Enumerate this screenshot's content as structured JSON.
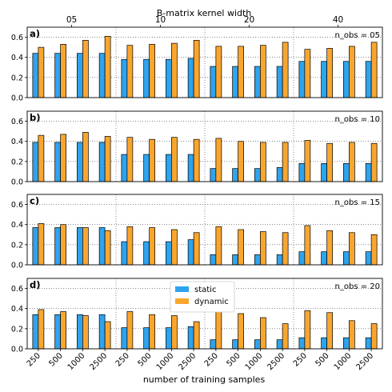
{
  "chart_data": {
    "type": "bar",
    "top_axis_label": "B-matrix kernel width",
    "top_ticks": [
      "05",
      "10",
      "20",
      "40"
    ],
    "xlabel": "number of training samples",
    "x_tick_labels": [
      "250",
      "500",
      "1000",
      "2500",
      "250",
      "500",
      "1000",
      "2500",
      "250",
      "500",
      "1000",
      "2500",
      "250",
      "500",
      "1000",
      "2500"
    ],
    "ylim": [
      0,
      0.7
    ],
    "yticks": [
      "0.0",
      "0.2",
      "0.4",
      "0.6"
    ],
    "grid": "horizontal dotted",
    "legend": {
      "placement": "center",
      "entries": [
        "static",
        "dynamic"
      ]
    },
    "colors": {
      "static": "#2ea3ee",
      "dynamic": "#f9a62e"
    },
    "panels": [
      {
        "label": "a)",
        "annotation": "n_obs = 05",
        "series": [
          {
            "name": "static",
            "values": [
              0.44,
              0.44,
              0.44,
              0.44,
              0.38,
              0.38,
              0.38,
              0.39,
              0.31,
              0.31,
              0.31,
              0.31,
              0.36,
              0.36,
              0.36,
              0.36
            ]
          },
          {
            "name": "dynamic",
            "values": [
              0.5,
              0.53,
              0.57,
              0.61,
              0.52,
              0.53,
              0.54,
              0.57,
              0.51,
              0.51,
              0.52,
              0.55,
              0.48,
              0.49,
              0.51,
              0.55
            ]
          }
        ]
      },
      {
        "label": "b)",
        "annotation": "n_obs = 10",
        "series": [
          {
            "name": "static",
            "values": [
              0.39,
              0.39,
              0.39,
              0.39,
              0.27,
              0.27,
              0.27,
              0.27,
              0.13,
              0.13,
              0.13,
              0.14,
              0.18,
              0.18,
              0.18,
              0.18
            ]
          },
          {
            "name": "dynamic",
            "values": [
              0.46,
              0.47,
              0.49,
              0.45,
              0.44,
              0.42,
              0.44,
              0.42,
              0.43,
              0.4,
              0.39,
              0.39,
              0.41,
              0.38,
              0.39,
              0.38
            ]
          }
        ]
      },
      {
        "label": "c)",
        "annotation": "n_obs = 15",
        "series": [
          {
            "name": "static",
            "values": [
              0.37,
              0.37,
              0.37,
              0.37,
              0.23,
              0.23,
              0.23,
              0.25,
              0.1,
              0.1,
              0.1,
              0.1,
              0.13,
              0.13,
              0.13,
              0.13
            ]
          },
          {
            "name": "dynamic",
            "values": [
              0.41,
              0.4,
              0.37,
              0.34,
              0.38,
              0.37,
              0.35,
              0.32,
              0.38,
              0.35,
              0.33,
              0.32,
              0.39,
              0.34,
              0.32,
              0.3
            ]
          }
        ]
      },
      {
        "label": "d)",
        "annotation": "n_obs = 20",
        "series": [
          {
            "name": "static",
            "values": [
              0.34,
              0.34,
              0.34,
              0.34,
              0.21,
              0.21,
              0.21,
              0.22,
              0.09,
              0.09,
              0.09,
              0.09,
              0.11,
              0.11,
              0.11,
              0.11
            ]
          },
          {
            "name": "dynamic",
            "values": [
              0.39,
              0.37,
              0.33,
              0.27,
              0.37,
              0.34,
              0.33,
              0.27,
              0.37,
              0.35,
              0.31,
              0.25,
              0.38,
              0.36,
              0.28,
              0.25
            ]
          }
        ]
      }
    ]
  }
}
